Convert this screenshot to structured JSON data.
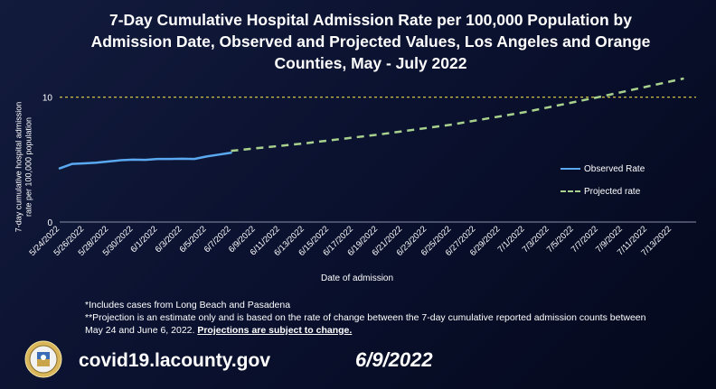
{
  "chart_data": {
    "type": "line",
    "title": [
      "7-Day Cumulative Hospital Admission Rate per 100,000 Population by",
      "Admission Date, Observed and Projected Values, Los Angeles and Orange",
      "Counties, May - July 2022"
    ],
    "xlabel": "Date of admission",
    "ylabel": [
      "7-day cumulative hospital admission",
      "rate per 100,000 population"
    ],
    "ylim": [
      0,
      12
    ],
    "yticks": [
      0,
      10
    ],
    "xlim": [
      0,
      52
    ],
    "categories": [
      "5/24/2022",
      "5/26/2022",
      "5/28/2022",
      "5/30/2022",
      "6/1/2022",
      "6/3/2022",
      "6/5/2022",
      "6/7/2022",
      "6/9/2022",
      "6/11/2022",
      "6/13/2022",
      "6/15/2022",
      "6/17/2022",
      "6/19/2022",
      "6/21/2022",
      "6/23/2022",
      "6/25/2022",
      "6/27/2022",
      "6/29/2022",
      "7/1/2022",
      "7/3/2022",
      "7/5/2022",
      "7/7/2022",
      "7/9/2022",
      "7/11/2022",
      "7/13/2022"
    ],
    "category_index": [
      0,
      2,
      4,
      6,
      8,
      10,
      12,
      14,
      16,
      18,
      20,
      22,
      24,
      26,
      28,
      30,
      32,
      34,
      36,
      38,
      40,
      42,
      44,
      46,
      48,
      50
    ],
    "threshold": {
      "value": 10,
      "color": "#e8d84a"
    },
    "series": [
      {
        "name": "Observed Rate",
        "style": "solid",
        "color": "#5aa9f0",
        "x": [
          0,
          1,
          2,
          3,
          4,
          5,
          6,
          7,
          8,
          9,
          10,
          11,
          12,
          13,
          14
        ],
        "values": [
          4.3,
          4.65,
          4.7,
          4.75,
          4.85,
          4.95,
          5.0,
          4.98,
          5.05,
          5.05,
          5.07,
          5.05,
          5.25,
          5.4,
          5.55
        ]
      },
      {
        "name": "Projected rate",
        "style": "dashed",
        "color": "#a9d18e",
        "x": [
          14,
          20,
          26,
          32,
          38,
          44,
          48,
          51
        ],
        "values": [
          5.7,
          6.3,
          7.0,
          7.8,
          8.8,
          10.0,
          10.85,
          11.5
        ]
      }
    ]
  },
  "notes": {
    "line1": "*Includes cases from Long Beach and Pasadena",
    "line2": "**Projection is an estimate only and is based on the rate of change between the 7-day cumulative reported admission counts between May 24 and June 6, 2022.",
    "line2_emphasis": "Projections are subject to change."
  },
  "footer": {
    "website": "covid19.lacounty.gov",
    "date": "6/9/2022",
    "seal": "county-seal-icon"
  }
}
